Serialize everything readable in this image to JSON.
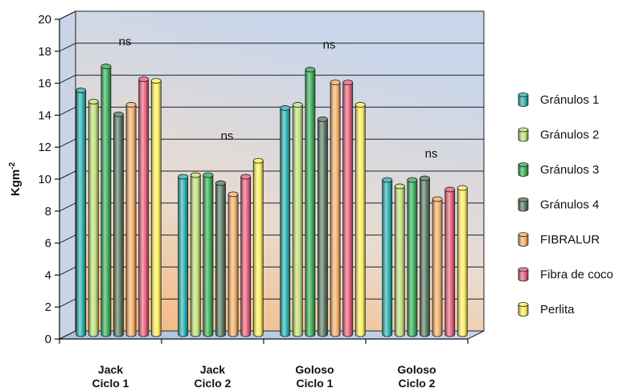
{
  "chart_data": {
    "type": "bar",
    "ylabel": "Kgm",
    "ylabel_exp": "-2",
    "ylim": [
      0,
      20
    ],
    "yticks": [
      "0",
      "2",
      "4",
      "6",
      "8",
      "10",
      "12",
      "14",
      "16",
      "18",
      "20"
    ],
    "grid": true,
    "legend_position": "right",
    "categories": [
      {
        "line1": "Jack",
        "line2": "Ciclo 1"
      },
      {
        "line1": "Jack",
        "line2": "Ciclo 2"
      },
      {
        "line1": "Goloso",
        "line2": "Ciclo 1"
      },
      {
        "line1": "Goloso",
        "line2": "Ciclo 2"
      }
    ],
    "annotations": [
      "ns",
      "ns",
      "ns",
      "ns"
    ],
    "series": [
      {
        "name": "Gránulos 1",
        "color": "#2ab0b0",
        "values": [
          15.4,
          10.0,
          14.3,
          9.8
        ]
      },
      {
        "name": "Gránulos 2",
        "color": "#c2e07a",
        "values": [
          14.7,
          10.1,
          14.5,
          9.4
        ]
      },
      {
        "name": "Gránulos 3",
        "color": "#3aae5a",
        "values": [
          16.9,
          10.1,
          16.7,
          9.8
        ]
      },
      {
        "name": "Gránulos 4",
        "color": "#5a7a62",
        "values": [
          13.9,
          9.6,
          13.6,
          9.9
        ]
      },
      {
        "name": "FIBRALUR",
        "color": "#f6b26b",
        "values": [
          14.5,
          8.9,
          15.9,
          8.6
        ]
      },
      {
        "name": "Fibra de coco",
        "color": "#e8607e",
        "values": [
          16.1,
          10.0,
          15.9,
          9.2
        ]
      },
      {
        "name": "Perlita",
        "color": "#fff060",
        "values": [
          16.0,
          11.0,
          14.5,
          9.3
        ]
      }
    ]
  }
}
